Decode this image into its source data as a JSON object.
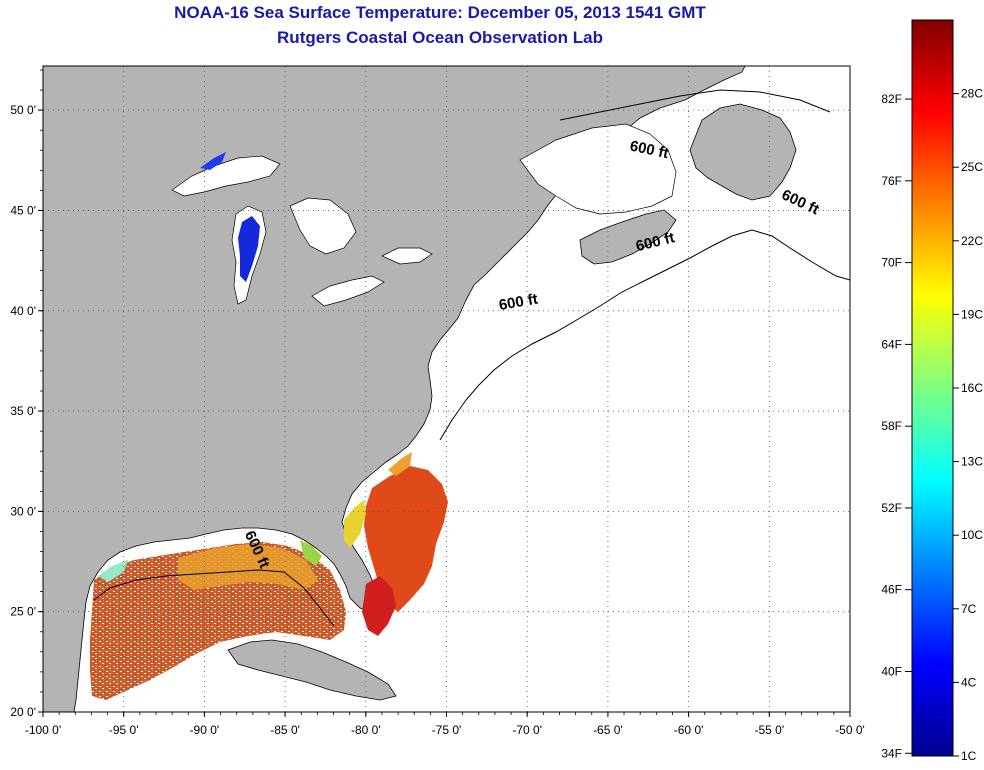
{
  "title": "NOAA-16 Sea Surface Temperature:  December 05, 2013 1541 GMT",
  "subtitle": "Rutgers Coastal Ocean Observation Lab",
  "map": {
    "lon_range": [
      -100,
      -50
    ],
    "lat_range": [
      20,
      52.2
    ],
    "lon_ticks": [
      {
        "value": -100,
        "label": "-100 0'"
      },
      {
        "value": -95,
        "label": "-95 0'"
      },
      {
        "value": -90,
        "label": "-90 0'"
      },
      {
        "value": -85,
        "label": "-85 0'"
      },
      {
        "value": -80,
        "label": "-80 0'"
      },
      {
        "value": -75,
        "label": "-75 0'"
      },
      {
        "value": -70,
        "label": "-70 0'"
      },
      {
        "value": -65,
        "label": "-65 0'"
      },
      {
        "value": -60,
        "label": "-60 0'"
      },
      {
        "value": -55,
        "label": "-55 0'"
      },
      {
        "value": -50,
        "label": "-50 0'"
      }
    ],
    "lat_ticks": [
      {
        "value": 20,
        "label": "20 0'"
      },
      {
        "value": 25,
        "label": "25 0'"
      },
      {
        "value": 30,
        "label": "30 0'"
      },
      {
        "value": 35,
        "label": "35 0'"
      },
      {
        "value": 40,
        "label": "40 0'"
      },
      {
        "value": 45,
        "label": "45 0'"
      },
      {
        "value": 50,
        "label": "50 0'"
      }
    ],
    "grid": true,
    "land_color": "#b4b4b4",
    "ocean_color": "#ffffff",
    "contour_text": "600 ft",
    "contour_labels": [
      {
        "lon": -87.0,
        "lat": 28.0,
        "angle": 65
      },
      {
        "lon": -62.5,
        "lat": 47.8,
        "angle": 12
      },
      {
        "lon": -53.2,
        "lat": 45.2,
        "angle": 25
      },
      {
        "lon": -62.0,
        "lat": 43.2,
        "angle": -14
      },
      {
        "lon": -70.5,
        "lat": 40.2,
        "angle": -10
      }
    ]
  },
  "colorbar": {
    "colors": [
      "#00008f",
      "#0000ff",
      "#0080ff",
      "#00ffff",
      "#80ff80",
      "#ffff00",
      "#ff8000",
      "#ff0000",
      "#800000"
    ],
    "fahrenheit_labels": [
      "34F",
      "40F",
      "46F",
      "52F",
      "58F",
      "64F",
      "70F",
      "76F",
      "82F"
    ],
    "celsius_labels": [
      "1C",
      "4C",
      "7C",
      "10C",
      "13C",
      "16C",
      "19C",
      "22C",
      "25C",
      "28C"
    ]
  }
}
